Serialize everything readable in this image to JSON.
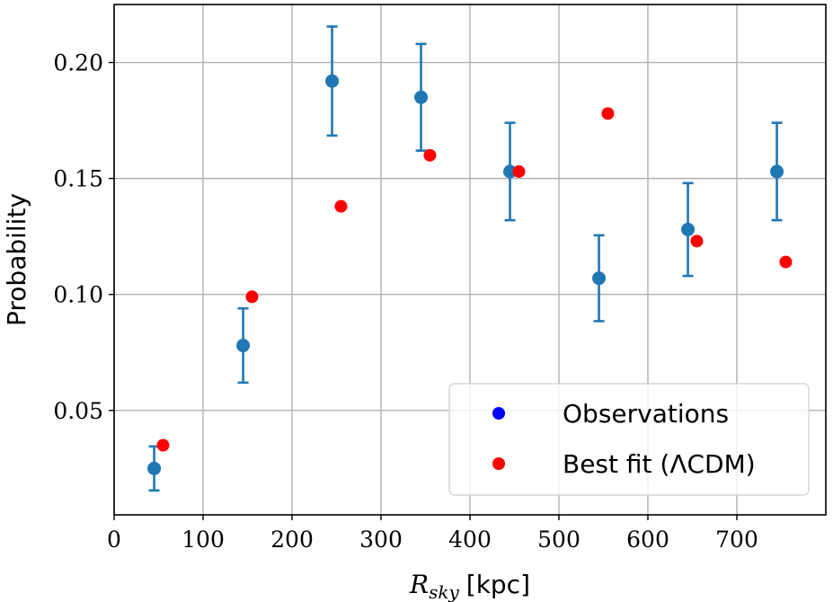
{
  "chart_data": {
    "type": "scatter",
    "title": "",
    "xlabel": "R_sky [kpc]",
    "xlabel_parts": {
      "main": "R",
      "sub": "sky",
      "unit": "[kpc]"
    },
    "ylabel": "Probability",
    "xlim": [
      0,
      800
    ],
    "ylim": [
      0.005,
      0.225
    ],
    "grid": true,
    "x_ticks": [
      0,
      100,
      200,
      300,
      400,
      500,
      600,
      700
    ],
    "x_tick_labels": [
      "0",
      "100",
      "200",
      "300",
      "400",
      "500",
      "600",
      "700"
    ],
    "y_ticks": [
      0.05,
      0.1,
      0.15,
      0.2
    ],
    "y_tick_labels": [
      "0.05",
      "0.10",
      "0.15",
      "0.20"
    ],
    "legend_position": "bottom-right",
    "series": [
      {
        "name": "Observations",
        "legend_label": "Observations",
        "color": "#1f77b4",
        "legend_color": "#0000ff",
        "x": [
          45,
          145,
          245,
          345,
          445,
          545,
          645,
          745
        ],
        "y": [
          0.025,
          0.078,
          0.192,
          0.185,
          0.153,
          0.107,
          0.128,
          0.153
        ],
        "yerr": [
          0.0095,
          0.016,
          0.0235,
          0.023,
          0.021,
          0.0185,
          0.02,
          0.021
        ]
      },
      {
        "name": "Best fit",
        "legend_label": "Best fit (ΛCDM)",
        "color": "#ff0000",
        "legend_color": "#ff0000",
        "x": [
          55,
          155,
          255,
          355,
          455,
          555,
          655,
          755
        ],
        "y": [
          0.035,
          0.099,
          0.138,
          0.16,
          0.153,
          0.178,
          0.123,
          0.114
        ]
      }
    ]
  }
}
